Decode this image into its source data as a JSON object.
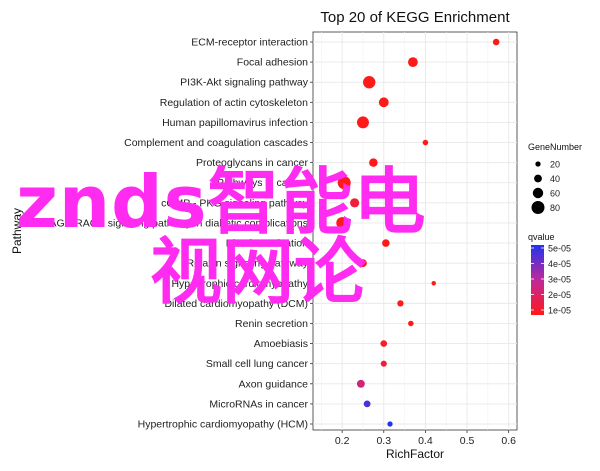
{
  "chart_data": {
    "type": "scatter",
    "title": "Top 20 of KEGG Enrichment",
    "xlabel": "RichFactor",
    "ylabel": "Pathway",
    "xlim": [
      0.13,
      0.62
    ],
    "xticks": [
      0.2,
      0.3,
      0.4,
      0.5,
      0.6
    ],
    "xtick_labels": [
      "0.2",
      "0.3",
      "0.4",
      "0.5",
      "0.6"
    ],
    "grid": true,
    "legend_position": "right",
    "categories": [
      "ECM-receptor interaction",
      "Focal adhesion",
      "PI3K-Akt signaling pathway",
      "Regulation of actin cytoskeleton",
      "Human papillomavirus infection",
      "Complement and coagulation cascades",
      "Proteoglycans in cancer",
      "Pathways in cancer",
      "cGMP - PKG signaling pathway",
      "AGE-RAGE signaling pathway in diabetic complications",
      "Platelet activation",
      "Relaxin signaling pathway",
      "Hypertrophic cardiomyopathy",
      "Dilated cardiomyopathy (DCM)",
      "Renin secretion",
      "Amoebiasis",
      "Small cell lung cancer",
      "Axon guidance",
      "MicroRNAs in cancer",
      "Hypertrophic cardiomyopathy (HCM)"
    ],
    "points": [
      {
        "x": 0.57,
        "size": 30,
        "qvalue": 1e-05
      },
      {
        "x": 0.37,
        "size": 55,
        "qvalue": 1e-05
      },
      {
        "x": 0.265,
        "size": 75,
        "qvalue": 1e-05
      },
      {
        "x": 0.3,
        "size": 55,
        "qvalue": 1e-05
      },
      {
        "x": 0.25,
        "size": 72,
        "qvalue": 1e-05
      },
      {
        "x": 0.4,
        "size": 22,
        "qvalue": 1e-05
      },
      {
        "x": 0.275,
        "size": 45,
        "qvalue": 1e-05
      },
      {
        "x": 0.205,
        "size": 80,
        "qvalue": 1e-05
      },
      {
        "x": 0.23,
        "size": 50,
        "qvalue": 1.5e-05
      },
      {
        "x": 0.2,
        "size": 70,
        "qvalue": 1e-05
      },
      {
        "x": 0.305,
        "size": 38,
        "qvalue": 1e-05
      },
      {
        "x": 0.25,
        "size": 40,
        "qvalue": 1.2e-05
      },
      {
        "x": 0.42,
        "size": 14,
        "qvalue": 1e-05
      },
      {
        "x": 0.34,
        "size": 28,
        "qvalue": 1e-05
      },
      {
        "x": 0.365,
        "size": 22,
        "qvalue": 1e-05
      },
      {
        "x": 0.3,
        "size": 30,
        "qvalue": 1.3e-05
      },
      {
        "x": 0.3,
        "size": 26,
        "qvalue": 1.5e-05
      },
      {
        "x": 0.245,
        "size": 40,
        "qvalue": 2.5e-05
      },
      {
        "x": 0.26,
        "size": 32,
        "qvalue": 4.5e-05
      },
      {
        "x": 0.315,
        "size": 20,
        "qvalue": 5e-05
      }
    ],
    "size_legend": {
      "title": "GeneNumber",
      "values": [
        20,
        40,
        60,
        80
      ],
      "labels": [
        "20",
        "40",
        "60",
        "80"
      ]
    },
    "color_legend": {
      "title": "qvalue",
      "labels": [
        "5e-05",
        "4e-05",
        "3e-05",
        "2e-05",
        "1e-05"
      ],
      "low_color": "#ff1a1a",
      "high_color": "#2222ee"
    }
  },
  "pathway_labels": [
    "ECM-receptor interaction",
    "Focal adhesion",
    "PI3K-Akt signaling pathway",
    "Regulation of actin cytoskeleton",
    "Human papillomavirus infection",
    "Complement and coagulation cascades",
    "Proteoglycans in cancer",
    "Pathways in cancer",
    "cGMP - PKG signaling pathway",
    "AGE-RAGE signaling pathway in diabetic complications",
    "Platelet activation",
    "Relaxin signaling pathway",
    "Hypertrophic cardiomyopathy",
    "Dilated cardiomyopathy (DCM)",
    "Renin secretion",
    "Amoebiasis",
    "Small cell lung cancer",
    "Axon guidance",
    "MicroRNAs in cancer",
    "Hypertrophic cardiomyopathy (HCM)"
  ],
  "watermark": {
    "line1": "znds智能电",
    "line2": "视网论"
  },
  "colors": {
    "panel_background": "#ffffff",
    "grid": "#e8e8e8",
    "watermark": "#ff2bf0"
  }
}
